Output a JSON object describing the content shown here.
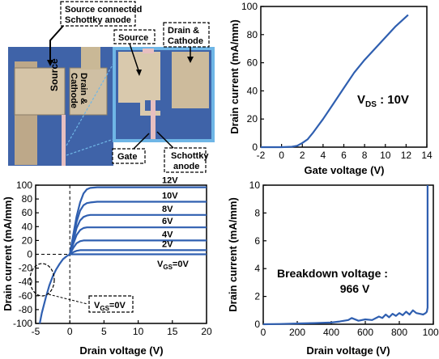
{
  "photo": {
    "callouts": {
      "anode": [
        "Source connected",
        "Schottky anode"
      ],
      "source_label": "Source",
      "drain_cathode": [
        "Drain &",
        "Cathode"
      ],
      "gate": "Gate",
      "schottky_anode": [
        "Schottky",
        "anode"
      ],
      "chip_source": "Source",
      "chip_drain": [
        "Drain &",
        "Cathode"
      ]
    },
    "colors": {
      "substrate": "#3f63a8",
      "pad": "#c8b79a",
      "metal": "#d9c9ad",
      "inset_frame": "#6fb6e6",
      "finger": "#e7bfc0"
    }
  },
  "chart_data": [
    {
      "type": "line",
      "panel": "transfer",
      "xlabel": "Gate voltage (V)",
      "ylabel": "Drain current (mA/mm)",
      "xlim": [
        -2,
        14
      ],
      "ylim": [
        0,
        100
      ],
      "xticks": [
        "-2",
        "0",
        "2",
        "4",
        "6",
        "8",
        "10",
        "12",
        "14"
      ],
      "yticks": [
        "0",
        "20",
        "40",
        "60",
        "80",
        "100"
      ],
      "annotation": {
        "main": "V",
        "sub": "DS",
        "rest": " : 10V"
      },
      "series": [
        {
          "x": [
            -2,
            0,
            1,
            1.5,
            2,
            2.5,
            3,
            3.5,
            4,
            5,
            6,
            7,
            8,
            9,
            10,
            11,
            12.2
          ],
          "y": [
            0,
            0,
            0.3,
            1,
            3,
            5.5,
            10,
            15,
            20,
            31,
            42,
            53,
            62,
            70,
            78,
            86,
            94
          ]
        }
      ]
    },
    {
      "type": "line",
      "panel": "output",
      "xlabel": "Drain voltage (V)",
      "ylabel": "Drain current (mA/mm)",
      "xlim": [
        -5,
        20
      ],
      "ylim": [
        -100,
        100
      ],
      "xticks": [
        "-5",
        "0",
        "5",
        "10",
        "15",
        "20"
      ],
      "yticks": [
        "100",
        "80",
        "60",
        "40",
        "20",
        "0",
        "-20",
        "-40",
        "-60",
        "-80",
        "-100"
      ],
      "curve_labels": [
        "12V",
        "10V",
        "8V",
        "6V",
        "4V",
        "2V"
      ],
      "vgs_label": {
        "main": "V",
        "sub": "GS",
        "rest": "=0V"
      },
      "callout_label": {
        "main": "V",
        "sub": "GS",
        "rest": "=0V"
      },
      "series": [
        {
          "name": "12V",
          "x": [
            0,
            0.5,
            1,
            1.5,
            2,
            2.5,
            3,
            4,
            20
          ],
          "y": [
            0,
            28,
            55,
            75,
            88,
            94,
            96,
            97,
            97
          ]
        },
        {
          "name": "10V",
          "x": [
            0,
            0.5,
            1,
            1.5,
            2,
            2.5,
            3,
            4,
            20
          ],
          "y": [
            0,
            24,
            47,
            63,
            71,
            74,
            75,
            76,
            76
          ]
        },
        {
          "name": "8V",
          "x": [
            0,
            0.5,
            1,
            1.5,
            2,
            2.5,
            3,
            20
          ],
          "y": [
            0,
            20,
            38,
            49,
            54,
            56,
            57,
            57
          ]
        },
        {
          "name": "6V",
          "x": [
            0,
            0.5,
            1,
            1.5,
            2,
            2.5,
            20
          ],
          "y": [
            0,
            15,
            28,
            35,
            38,
            39,
            39
          ]
        },
        {
          "name": "4V",
          "x": [
            0,
            0.5,
            1,
            1.5,
            2,
            20
          ],
          "y": [
            0,
            9,
            16,
            19,
            20,
            20
          ]
        },
        {
          "name": "2V",
          "x": [
            0,
            0.5,
            1,
            1.5,
            20
          ],
          "y": [
            0,
            3,
            5,
            6,
            6
          ]
        },
        {
          "name": "0V",
          "x": [
            0,
            20
          ],
          "y": [
            0,
            0
          ]
        },
        {
          "x": [
            -4.4,
            -4.1,
            -3.5,
            -3.0,
            -2.5,
            -2.0,
            -1.5,
            -1.0,
            -0.5,
            0
          ],
          "y": [
            -100,
            -85,
            -62,
            -45,
            -32,
            -22,
            -14,
            -7,
            -3,
            0
          ]
        }
      ]
    },
    {
      "type": "line",
      "panel": "breakdown",
      "xlabel": "Drain voltage (V)",
      "ylabel": "Drain current (mA/mm)",
      "xlim": [
        0,
        1000
      ],
      "ylim": [
        0,
        10
      ],
      "xticks": [
        "0",
        "200",
        "400",
        "600",
        "800",
        "1000"
      ],
      "yticks": [
        "0",
        "2",
        "4",
        "6",
        "8",
        "10"
      ],
      "annotation": [
        "Breakdown voltage :",
        "966 V"
      ],
      "series": [
        {
          "x": [
            0,
            100,
            200,
            300,
            400,
            450,
            500,
            520,
            560,
            600,
            640,
            680,
            700,
            720,
            740,
            760,
            780,
            800,
            820,
            840,
            860,
            880,
            900,
            920,
            940,
            955,
            962,
            966,
            966
          ],
          "y": [
            0,
            0.02,
            0.05,
            0.08,
            0.12,
            0.2,
            0.3,
            0.45,
            0.25,
            0.35,
            0.3,
            0.55,
            0.45,
            0.7,
            0.5,
            0.75,
            0.6,
            0.8,
            0.65,
            0.9,
            0.7,
            1.0,
            0.8,
            0.75,
            0.7,
            0.8,
            0.9,
            1.2,
            10
          ]
        }
      ]
    }
  ]
}
